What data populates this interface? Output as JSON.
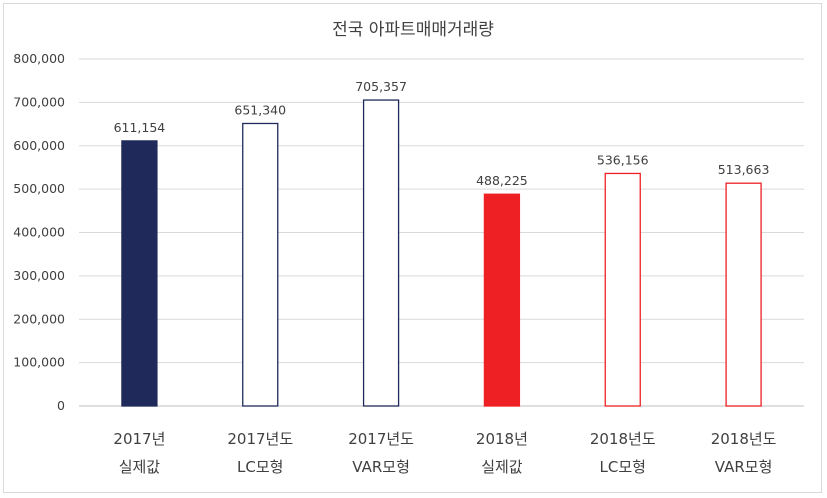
{
  "chart_data": {
    "type": "bar",
    "title": "전국 아파트매매거래량",
    "xlabel": "",
    "ylabel": "",
    "ylim": [
      0,
      800000
    ],
    "yticks": [
      0,
      100000,
      200000,
      300000,
      400000,
      500000,
      600000,
      700000,
      800000
    ],
    "ytick_labels": [
      "0",
      "100,000",
      "200,000",
      "300,000",
      "400,000",
      "500,000",
      "600,000",
      "700,000",
      "800,000"
    ],
    "grid": true,
    "categories": [
      [
        "2017년",
        "실제값"
      ],
      [
        "2017년도",
        "LC모형"
      ],
      [
        "2017년도",
        "VAR모형"
      ],
      [
        "2018년",
        "실제값"
      ],
      [
        "2018년도",
        "LC모형"
      ],
      [
        "2018년도",
        "VAR모형"
      ]
    ],
    "values": [
      611154,
      651340,
      705357,
      488225,
      536156,
      513663
    ],
    "value_labels": [
      "611,154",
      "651,340",
      "705,357",
      "488,225",
      "536,156",
      "513,663"
    ],
    "bar_styles": [
      {
        "fill": "#1f2a5a",
        "stroke": "#1f2a5a"
      },
      {
        "fill": "#ffffff",
        "stroke": "#1f2a5a"
      },
      {
        "fill": "#ffffff",
        "stroke": "#1f2a5a"
      },
      {
        "fill": "#ee2024",
        "stroke": "#ee2024"
      },
      {
        "fill": "#ffffff",
        "stroke": "#ee2024"
      },
      {
        "fill": "#ffffff",
        "stroke": "#ee2024"
      }
    ],
    "colors": {
      "grid": "#d9d9d9",
      "text": "#404040",
      "axis": "#bfbfbf"
    }
  }
}
